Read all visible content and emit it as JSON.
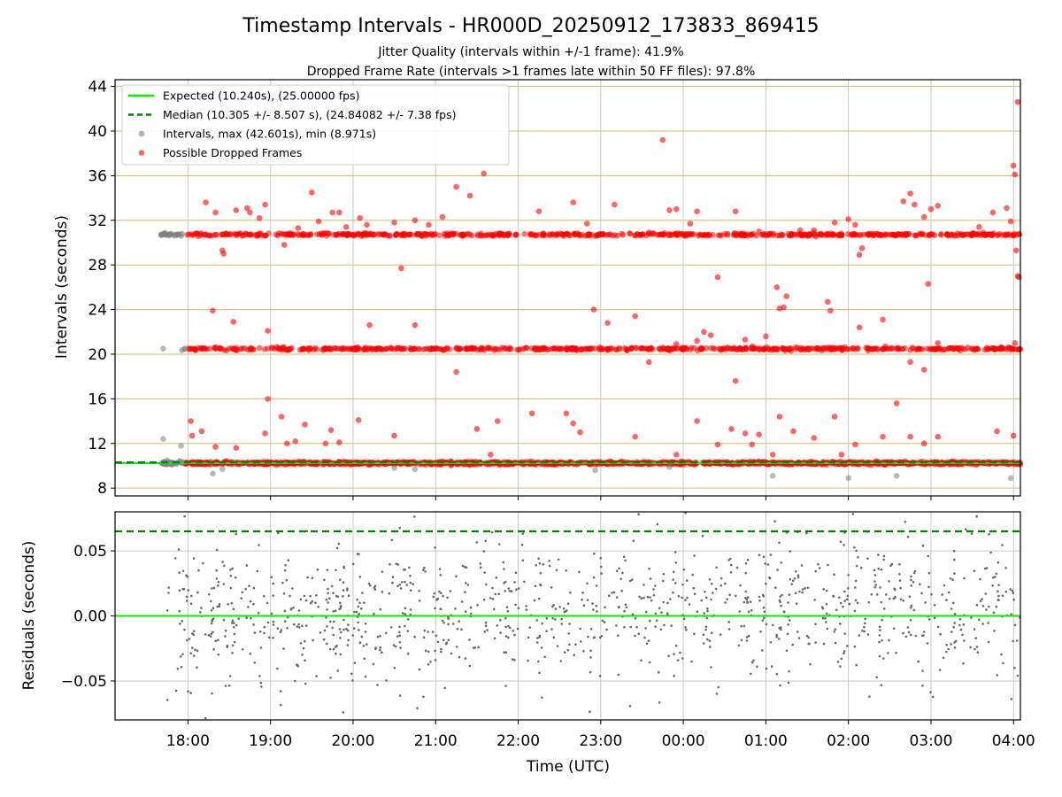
{
  "colors": {
    "expected_line": "#00ee00",
    "median_line": "#008000",
    "intervals": "#808080",
    "dropped": "#ff0000",
    "hgrid": "#d2b96a",
    "vgrid": "#c8c8c8",
    "residual_points": "#666666"
  },
  "chart_data": [
    {
      "type": "scatter",
      "title": "Timestamp Intervals - HR000D_20250912_173833_869415",
      "subtitle_lines": [
        "Jitter Quality (intervals within +/-1 frame): 41.9%",
        "Dropped Frame Rate (intervals >1 frames late within 50 FF files): 97.8%"
      ],
      "xlabel": "",
      "ylabel": "Intervals (seconds)",
      "xlim": [
        "17:07",
        "04:05"
      ],
      "ylim": [
        7.3,
        44.6
      ],
      "grid": true,
      "legend_position": "top-left",
      "legend": [
        {
          "kind": "line",
          "label": "Expected (10.240s), (25.00000 fps)"
        },
        {
          "kind": "dashed",
          "label": "Median (10.305 +/- 8.507 s), (24.84082 +/- 7.38 fps)"
        },
        {
          "kind": "gray-dot",
          "label": "Intervals, max (42.601s), min (8.971s)"
        },
        {
          "kind": "red-dot",
          "label": "Possible Dropped Frames"
        }
      ],
      "ytick_labels": [
        "8",
        "12",
        "16",
        "20",
        "24",
        "28",
        "32",
        "36",
        "40",
        "44"
      ],
      "reference_lines": [
        {
          "name": "Expected",
          "y": 10.24,
          "style": "solid"
        },
        {
          "name": "Median",
          "y": 10.305,
          "style": "dashed"
        }
      ],
      "bands": [
        {
          "center": 10.24,
          "from": "17:40",
          "to": "04:05"
        },
        {
          "center": 20.48,
          "from": "17:55",
          "to": "04:05"
        },
        {
          "center": 30.72,
          "from": "17:40",
          "to": "04:05"
        }
      ],
      "gray_points": [
        [
          "17:42",
          30.72
        ],
        [
          "17:44",
          30.72
        ],
        [
          "17:46",
          30.72
        ],
        [
          "17:48",
          30.72
        ],
        [
          "17:50",
          30.72
        ],
        [
          "17:52",
          30.72
        ],
        [
          "17:42",
          20.5
        ],
        [
          "17:42",
          12.4
        ],
        [
          "17:55",
          11.8
        ],
        [
          "17:45",
          10.5
        ],
        [
          "17:48",
          10.3
        ],
        [
          "18:18",
          9.3
        ],
        [
          "18:25",
          9.7
        ],
        [
          "20:30",
          9.8
        ],
        [
          "20:45",
          9.7
        ],
        [
          "22:56",
          9.6
        ],
        [
          "01:05",
          9.1
        ],
        [
          "02:00",
          8.9
        ],
        [
          "02:35",
          9.1
        ],
        [
          "03:58",
          8.9
        ],
        [
          "23:50",
          9.9
        ]
      ],
      "dropped_points": [
        [
          "18:02",
          14.0
        ],
        [
          "18:03",
          12.7
        ],
        [
          "18:10",
          13.1
        ],
        [
          "18:20",
          11.7
        ],
        [
          "18:35",
          11.6
        ],
        [
          "18:56",
          12.9
        ],
        [
          "18:58",
          16.0
        ],
        [
          "19:08",
          14.4
        ],
        [
          "19:12",
          12.0
        ],
        [
          "19:18",
          12.2
        ],
        [
          "19:25",
          13.7
        ],
        [
          "19:40",
          12.0
        ],
        [
          "19:44",
          13.2
        ],
        [
          "19:50",
          12.1
        ],
        [
          "20:04",
          14.1
        ],
        [
          "20:30",
          12.7
        ],
        [
          "21:30",
          13.3
        ],
        [
          "21:40",
          11.0
        ],
        [
          "21:45",
          14.0
        ],
        [
          "22:10",
          14.7
        ],
        [
          "22:35",
          14.7
        ],
        [
          "22:45",
          13.0
        ],
        [
          "22:40",
          13.8
        ],
        [
          "23:25",
          12.6
        ],
        [
          "23:55",
          11.0
        ],
        [
          "00:10",
          14.0
        ],
        [
          "00:25",
          11.9
        ],
        [
          "00:35",
          13.3
        ],
        [
          "00:45",
          12.9
        ],
        [
          "00:50",
          11.9
        ],
        [
          "00:55",
          12.8
        ],
        [
          "01:05",
          11.0
        ],
        [
          "01:10",
          14.4
        ],
        [
          "01:20",
          13.1
        ],
        [
          "01:35",
          12.5
        ],
        [
          "01:50",
          14.4
        ],
        [
          "01:55",
          11.0
        ],
        [
          "02:05",
          11.9
        ],
        [
          "02:25",
          12.6
        ],
        [
          "02:35",
          15.6
        ],
        [
          "02:45",
          12.6
        ],
        [
          "02:55",
          12.0
        ],
        [
          "03:05",
          12.6
        ],
        [
          "03:48",
          13.1
        ],
        [
          "04:00",
          12.7
        ],
        [
          "18:18",
          23.9
        ],
        [
          "18:33",
          22.9
        ],
        [
          "18:58",
          22.1
        ],
        [
          "20:12",
          22.6
        ],
        [
          "20:45",
          22.6
        ],
        [
          "21:15",
          18.4
        ],
        [
          "22:55",
          24.0
        ],
        [
          "23:05",
          22.8
        ],
        [
          "23:25",
          23.4
        ],
        [
          "23:35",
          19.3
        ],
        [
          "23:55",
          20.9
        ],
        [
          "00:10",
          21.2
        ],
        [
          "00:15",
          22.0
        ],
        [
          "00:20",
          21.7
        ],
        [
          "00:38",
          17.6
        ],
        [
          "00:45",
          21.3
        ],
        [
          "00:50",
          20.7
        ],
        [
          "01:00",
          21.6
        ],
        [
          "01:08",
          26.0
        ],
        [
          "01:10",
          24.1
        ],
        [
          "01:13",
          24.2
        ],
        [
          "01:15",
          25.2
        ],
        [
          "01:45",
          24.7
        ],
        [
          "01:47",
          23.9
        ],
        [
          "02:08",
          22.4
        ],
        [
          "02:25",
          23.1
        ],
        [
          "02:45",
          19.3
        ],
        [
          "02:55",
          18.6
        ],
        [
          "02:58",
          26.3
        ],
        [
          "03:05",
          21.0
        ],
        [
          "04:01",
          21.0
        ],
        [
          "18:13",
          33.6
        ],
        [
          "18:20",
          32.7
        ],
        [
          "18:25",
          29.3
        ],
        [
          "18:26",
          29.0
        ],
        [
          "18:35",
          32.9
        ],
        [
          "18:43",
          33.1
        ],
        [
          "18:45",
          32.7
        ],
        [
          "18:52",
          32.2
        ],
        [
          "18:56",
          33.4
        ],
        [
          "19:10",
          29.8
        ],
        [
          "19:20",
          31.3
        ],
        [
          "19:30",
          34.5
        ],
        [
          "19:35",
          31.9
        ],
        [
          "19:45",
          32.7
        ],
        [
          "19:50",
          32.7
        ],
        [
          "19:55",
          31.4
        ],
        [
          "20:05",
          32.2
        ],
        [
          "20:10",
          31.6
        ],
        [
          "20:30",
          31.8
        ],
        [
          "20:35",
          27.7
        ],
        [
          "20:45",
          32.0
        ],
        [
          "20:55",
          31.6
        ],
        [
          "21:05",
          32.3
        ],
        [
          "21:15",
          35.0
        ],
        [
          "21:25",
          34.2
        ],
        [
          "21:35",
          36.2
        ],
        [
          "22:15",
          32.8
        ],
        [
          "22:40",
          33.6
        ],
        [
          "22:50",
          31.7
        ],
        [
          "23:10",
          33.4
        ],
        [
          "23:35",
          30.9
        ],
        [
          "23:45",
          39.2
        ],
        [
          "23:50",
          32.9
        ],
        [
          "23:55",
          33.0
        ],
        [
          "00:05",
          31.7
        ],
        [
          "00:10",
          32.8
        ],
        [
          "00:25",
          26.9
        ],
        [
          "00:38",
          32.8
        ],
        [
          "00:55",
          31.0
        ],
        [
          "01:25",
          31.1
        ],
        [
          "01:35",
          31.1
        ],
        [
          "01:50",
          31.8
        ],
        [
          "02:00",
          32.1
        ],
        [
          "02:05",
          31.6
        ],
        [
          "02:08",
          28.9
        ],
        [
          "02:10",
          29.5
        ],
        [
          "02:40",
          33.7
        ],
        [
          "02:45",
          34.4
        ],
        [
          "02:48",
          33.4
        ],
        [
          "02:55",
          32.3
        ],
        [
          "03:00",
          33.0
        ],
        [
          "03:05",
          33.3
        ],
        [
          "03:35",
          31.4
        ],
        [
          "03:45",
          32.7
        ],
        [
          "03:55",
          33.1
        ],
        [
          "03:58",
          31.9
        ],
        [
          "04:00",
          36.9
        ],
        [
          "04:01",
          36.1
        ],
        [
          "04:02",
          29.3
        ],
        [
          "04:03",
          42.6
        ],
        [
          "04:03",
          27.0
        ],
        [
          "04:04",
          26.9
        ]
      ]
    },
    {
      "type": "scatter",
      "xlabel": "Time (UTC)",
      "ylabel": "Residuals (seconds)",
      "xlim": [
        "17:07",
        "04:05"
      ],
      "ylim": [
        -0.08,
        0.08
      ],
      "grid": true,
      "ytick_labels": [
        "−0.05",
        "0.00",
        "0.05"
      ],
      "xtick_labels": [
        "18:00",
        "19:00",
        "20:00",
        "21:00",
        "22:00",
        "23:00",
        "00:00",
        "01:00",
        "02:00",
        "03:00",
        "04:00"
      ],
      "reference_lines": [
        {
          "name": "Zero",
          "y": 0.0,
          "style": "solid"
        },
        {
          "name": "Upper threshold",
          "y": 0.065,
          "style": "dashed"
        }
      ],
      "residual_distribution": {
        "from": "17:45",
        "to": "04:05",
        "mean": 0.003,
        "sd": 0.027,
        "min": -0.08,
        "max": 0.08,
        "count": 1100
      }
    }
  ]
}
